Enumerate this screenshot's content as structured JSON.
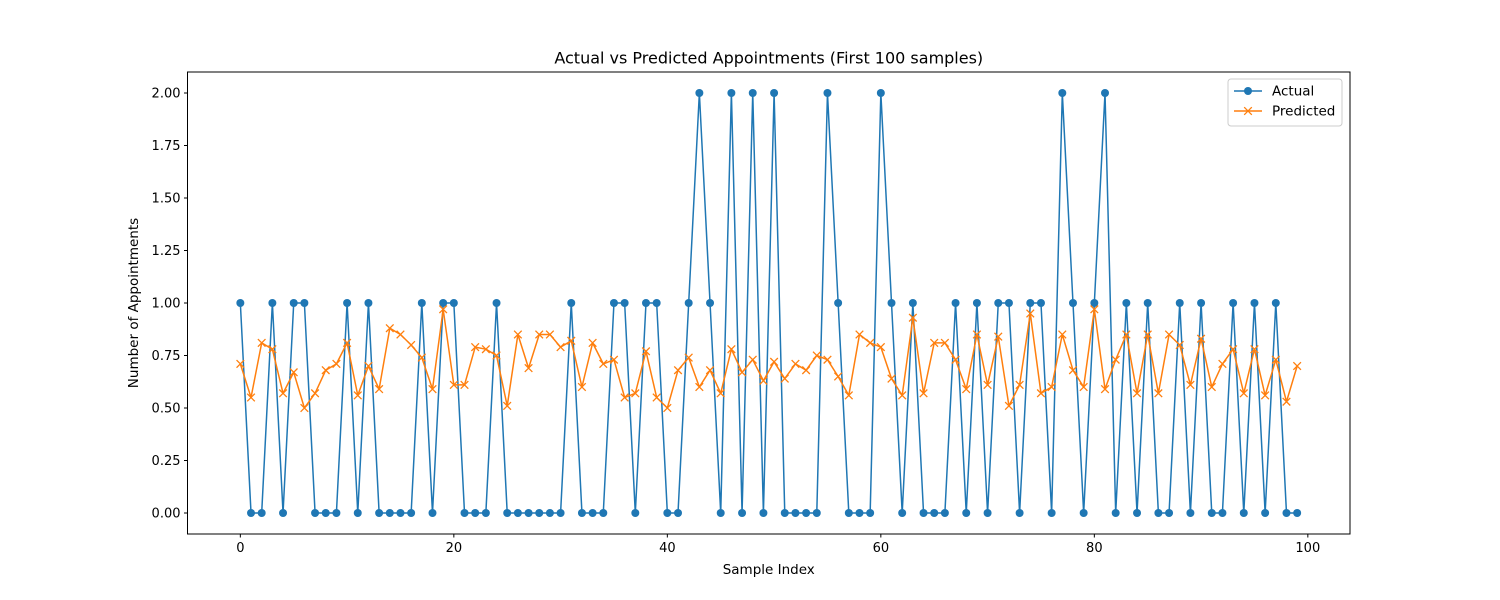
{
  "chart_data": {
    "type": "line",
    "title": "Actual vs Predicted Appointments (First 100 samples)",
    "xlabel": "Sample Index",
    "ylabel": "Number of Appointments",
    "xlim": [
      -4.95,
      103.95
    ],
    "ylim": [
      -0.1,
      2.1
    ],
    "xticks": [
      0,
      20,
      40,
      60,
      80,
      100
    ],
    "yticks": [
      0.0,
      0.25,
      0.5,
      0.75,
      1.0,
      1.25,
      1.5,
      1.75,
      2.0
    ],
    "grid": false,
    "legend_position": "top-right",
    "x": [
      0,
      1,
      2,
      3,
      4,
      5,
      6,
      7,
      8,
      9,
      10,
      11,
      12,
      13,
      14,
      15,
      16,
      17,
      18,
      19,
      20,
      21,
      22,
      23,
      24,
      25,
      26,
      27,
      28,
      29,
      30,
      31,
      32,
      33,
      34,
      35,
      36,
      37,
      38,
      39,
      40,
      41,
      42,
      43,
      44,
      45,
      46,
      47,
      48,
      49,
      50,
      51,
      52,
      53,
      54,
      55,
      56,
      57,
      58,
      59,
      60,
      61,
      62,
      63,
      64,
      65,
      66,
      67,
      68,
      69,
      70,
      71,
      72,
      73,
      74,
      75,
      76,
      77,
      78,
      79,
      80,
      81,
      82,
      83,
      84,
      85,
      86,
      87,
      88,
      89,
      90,
      91,
      92,
      93,
      94,
      95,
      96,
      97,
      98,
      99
    ],
    "series": [
      {
        "name": "Actual",
        "color": "#1f77b4",
        "marker": "circle",
        "values": [
          1,
          0,
          0,
          1,
          0,
          1,
          1,
          0,
          0,
          0,
          1,
          0,
          1,
          0,
          0,
          0,
          0,
          1,
          0,
          1,
          1,
          0,
          0,
          0,
          1,
          0,
          0,
          0,
          0,
          0,
          0,
          1,
          0,
          0,
          0,
          1,
          1,
          0,
          1,
          1,
          0,
          0,
          1,
          2,
          1,
          0,
          2,
          0,
          2,
          0,
          2,
          0,
          0,
          0,
          0,
          2,
          1,
          0,
          0,
          0,
          2,
          1,
          0,
          1,
          0,
          0,
          0,
          1,
          0,
          1,
          0,
          1,
          1,
          0,
          1,
          1,
          0,
          2,
          1,
          0,
          1,
          2,
          0,
          1,
          0,
          1,
          0,
          0,
          1,
          0,
          1,
          0,
          0,
          1,
          0,
          1,
          0,
          1,
          0,
          0
        ]
      },
      {
        "name": "Predicted",
        "color": "#ff7f0e",
        "marker": "x",
        "values": [
          0.71,
          0.55,
          0.81,
          0.78,
          0.57,
          0.67,
          0.5,
          0.57,
          0.68,
          0.71,
          0.81,
          0.56,
          0.7,
          0.59,
          0.88,
          0.85,
          0.8,
          0.74,
          0.59,
          0.97,
          0.61,
          0.61,
          0.79,
          0.78,
          0.75,
          0.51,
          0.85,
          0.69,
          0.85,
          0.85,
          0.79,
          0.82,
          0.6,
          0.81,
          0.71,
          0.73,
          0.55,
          0.57,
          0.77,
          0.55,
          0.5,
          0.68,
          0.74,
          0.6,
          0.68,
          0.57,
          0.78,
          0.67,
          0.73,
          0.63,
          0.72,
          0.64,
          0.71,
          0.68,
          0.75,
          0.73,
          0.65,
          0.56,
          0.85,
          0.81,
          0.79,
          0.64,
          0.56,
          0.93,
          0.57,
          0.81,
          0.81,
          0.73,
          0.59,
          0.85,
          0.61,
          0.84,
          0.51,
          0.61,
          0.95,
          0.57,
          0.6,
          0.85,
          0.68,
          0.6,
          0.97,
          0.59,
          0.73,
          0.85,
          0.57,
          0.85,
          0.57,
          0.85,
          0.8,
          0.61,
          0.83,
          0.6,
          0.71,
          0.78,
          0.57,
          0.78,
          0.56,
          0.73,
          0.53,
          0.7
        ]
      }
    ]
  }
}
